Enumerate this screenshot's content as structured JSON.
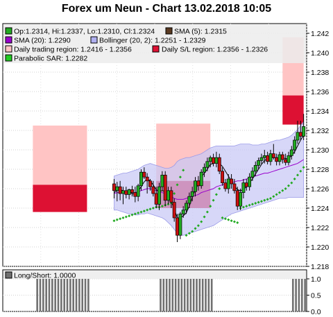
{
  "title": "Forex um Neun - Chart 13.02.2018 10:05",
  "colors": {
    "up": "#22aa22",
    "down": "#cc1111",
    "sma5": "#000000",
    "sma20": "#9900cc",
    "bollinger_fill": "#c8c8f5",
    "bollinger_line": "#9a9ae8",
    "trading_region": "#ffc4c4",
    "sl_region": "#dd1133",
    "sar": "#22aa22",
    "longshort": "#707070"
  },
  "legend": {
    "ohlc": "Op:1.2314, Hi:1.2337, Lo:1.2310, Cl:1.2324",
    "sma5": "SMA (5): 1.2315",
    "sma20": "SMA (20): 1.2290",
    "bollinger": "Bollinger (20, 2): 1.2251 - 1.2329",
    "trading_region": "Daily trading region: 1.2416 - 1.2356",
    "sl_region": "Daily S/L region: 1.2356 - 1.2326",
    "sar": "Parabolic SAR: 1.2282",
    "longshort": "Long/Short: 1.0000"
  },
  "chart_data": [
    {
      "type": "candlestick",
      "title": "Forex um Neun - Chart 13.02.2018 10:05",
      "ylim": [
        1.218,
        1.243
      ],
      "yticks": [
        "1.218",
        "1.220",
        "1.222",
        "1.224",
        "1.226",
        "1.228",
        "1.230",
        "1.232",
        "1.234",
        "1.236",
        "1.238",
        "1.240",
        "1.242"
      ],
      "grid": true,
      "legend_position": "top-left",
      "candles": [
        {
          "o": 1.2265,
          "h": 1.227,
          "l": 1.225,
          "c": 1.2258
        },
        {
          "o": 1.2258,
          "h": 1.2267,
          "l": 1.2247,
          "c": 1.2262
        },
        {
          "o": 1.2262,
          "h": 1.2268,
          "l": 1.2248,
          "c": 1.2255
        },
        {
          "o": 1.2255,
          "h": 1.2262,
          "l": 1.2244,
          "c": 1.2258
        },
        {
          "o": 1.2258,
          "h": 1.2262,
          "l": 1.225,
          "c": 1.2254
        },
        {
          "o": 1.2254,
          "h": 1.226,
          "l": 1.2249,
          "c": 1.2259
        },
        {
          "o": 1.2259,
          "h": 1.2263,
          "l": 1.2252,
          "c": 1.2256
        },
        {
          "o": 1.2256,
          "h": 1.2262,
          "l": 1.2246,
          "c": 1.2252
        },
        {
          "o": 1.2252,
          "h": 1.2265,
          "l": 1.2247,
          "c": 1.2263
        },
        {
          "o": 1.2263,
          "h": 1.228,
          "l": 1.2258,
          "c": 1.2277
        },
        {
          "o": 1.2277,
          "h": 1.2282,
          "l": 1.227,
          "c": 1.2272
        },
        {
          "o": 1.2272,
          "h": 1.2276,
          "l": 1.2255,
          "c": 1.2268
        },
        {
          "o": 1.2268,
          "h": 1.227,
          "l": 1.2258,
          "c": 1.2262
        },
        {
          "o": 1.2262,
          "h": 1.2268,
          "l": 1.2252,
          "c": 1.2255
        },
        {
          "o": 1.2255,
          "h": 1.2262,
          "l": 1.224,
          "c": 1.2244
        },
        {
          "o": 1.2244,
          "h": 1.2266,
          "l": 1.2238,
          "c": 1.2262
        },
        {
          "o": 1.2262,
          "h": 1.2278,
          "l": 1.2258,
          "c": 1.2274
        },
        {
          "o": 1.2274,
          "h": 1.2278,
          "l": 1.2242,
          "c": 1.2248
        },
        {
          "o": 1.2248,
          "h": 1.2262,
          "l": 1.2244,
          "c": 1.2258
        },
        {
          "o": 1.2258,
          "h": 1.2262,
          "l": 1.224,
          "c": 1.2246
        },
        {
          "o": 1.2246,
          "h": 1.225,
          "l": 1.2226,
          "c": 1.223
        },
        {
          "o": 1.223,
          "h": 1.2234,
          "l": 1.2205,
          "c": 1.2212
        },
        {
          "o": 1.2212,
          "h": 1.2236,
          "l": 1.2208,
          "c": 1.2234
        },
        {
          "o": 1.2234,
          "h": 1.2242,
          "l": 1.223,
          "c": 1.2238
        },
        {
          "o": 1.2238,
          "h": 1.2248,
          "l": 1.2234,
          "c": 1.2245
        },
        {
          "o": 1.2245,
          "h": 1.2256,
          "l": 1.224,
          "c": 1.2252
        },
        {
          "o": 1.2252,
          "h": 1.2262,
          "l": 1.2247,
          "c": 1.2257
        },
        {
          "o": 1.2257,
          "h": 1.2272,
          "l": 1.2252,
          "c": 1.2268
        },
        {
          "o": 1.2268,
          "h": 1.2273,
          "l": 1.2258,
          "c": 1.2263
        },
        {
          "o": 1.2263,
          "h": 1.228,
          "l": 1.226,
          "c": 1.2277
        },
        {
          "o": 1.2277,
          "h": 1.2286,
          "l": 1.2272,
          "c": 1.2282
        },
        {
          "o": 1.2282,
          "h": 1.2292,
          "l": 1.2278,
          "c": 1.2288
        },
        {
          "o": 1.2288,
          "h": 1.2294,
          "l": 1.2282,
          "c": 1.2292
        },
        {
          "o": 1.2292,
          "h": 1.2296,
          "l": 1.2283,
          "c": 1.2286
        },
        {
          "o": 1.2286,
          "h": 1.2298,
          "l": 1.2282,
          "c": 1.2292
        },
        {
          "o": 1.2292,
          "h": 1.2296,
          "l": 1.2275,
          "c": 1.2278
        },
        {
          "o": 1.2278,
          "h": 1.2282,
          "l": 1.2263,
          "c": 1.2266
        },
        {
          "o": 1.2266,
          "h": 1.227,
          "l": 1.2257,
          "c": 1.226
        },
        {
          "o": 1.226,
          "h": 1.2275,
          "l": 1.2255,
          "c": 1.227
        },
        {
          "o": 1.227,
          "h": 1.2275,
          "l": 1.226,
          "c": 1.2265
        },
        {
          "o": 1.2265,
          "h": 1.227,
          "l": 1.2255,
          "c": 1.2258
        },
        {
          "o": 1.2258,
          "h": 1.2262,
          "l": 1.2238,
          "c": 1.2242
        },
        {
          "o": 1.2242,
          "h": 1.226,
          "l": 1.2238,
          "c": 1.2256
        },
        {
          "o": 1.2256,
          "h": 1.227,
          "l": 1.225,
          "c": 1.2266
        },
        {
          "o": 1.2266,
          "h": 1.227,
          "l": 1.2258,
          "c": 1.2262
        },
        {
          "o": 1.2262,
          "h": 1.2276,
          "l": 1.2258,
          "c": 1.2272
        },
        {
          "o": 1.2272,
          "h": 1.2282,
          "l": 1.2268,
          "c": 1.2278
        },
        {
          "o": 1.2278,
          "h": 1.2288,
          "l": 1.2273,
          "c": 1.2284
        },
        {
          "o": 1.2284,
          "h": 1.2292,
          "l": 1.228,
          "c": 1.2289
        },
        {
          "o": 1.2289,
          "h": 1.2296,
          "l": 1.2285,
          "c": 1.2292
        },
        {
          "o": 1.2292,
          "h": 1.23,
          "l": 1.2286,
          "c": 1.2294
        },
        {
          "o": 1.2294,
          "h": 1.2298,
          "l": 1.2285,
          "c": 1.2288
        },
        {
          "o": 1.2288,
          "h": 1.23,
          "l": 1.2284,
          "c": 1.2296
        },
        {
          "o": 1.2296,
          "h": 1.2306,
          "l": 1.229,
          "c": 1.2292
        },
        {
          "o": 1.2292,
          "h": 1.2296,
          "l": 1.2284,
          "c": 1.2288
        },
        {
          "o": 1.2288,
          "h": 1.2298,
          "l": 1.2284,
          "c": 1.2295
        },
        {
          "o": 1.2295,
          "h": 1.2298,
          "l": 1.2286,
          "c": 1.229
        },
        {
          "o": 1.229,
          "h": 1.2296,
          "l": 1.2284,
          "c": 1.2287
        },
        {
          "o": 1.2287,
          "h": 1.2298,
          "l": 1.2284,
          "c": 1.2294
        },
        {
          "o": 1.2294,
          "h": 1.2304,
          "l": 1.229,
          "c": 1.23
        },
        {
          "o": 1.23,
          "h": 1.2314,
          "l": 1.2296,
          "c": 1.231
        },
        {
          "o": 1.231,
          "h": 1.233,
          "l": 1.2306,
          "c": 1.2318
        },
        {
          "o": 1.2318,
          "h": 1.233,
          "l": 1.231,
          "c": 1.2314
        },
        {
          "o": 1.2314,
          "h": 1.2337,
          "l": 1.231,
          "c": 1.2324
        }
      ],
      "sma5": [
        1.2256,
        1.2258,
        1.2259,
        1.2258,
        1.2256,
        1.2256,
        1.2255,
        1.2254,
        1.2257,
        1.2262,
        1.2267,
        1.227,
        1.2268,
        1.2264,
        1.2259,
        1.2257,
        1.2258,
        1.2257,
        1.2253,
        1.2247,
        1.2239,
        1.223,
        1.223,
        1.2232,
        1.2235,
        1.2242,
        1.2251,
        1.2259,
        1.2265,
        1.2272,
        1.2276,
        1.228,
        1.2285,
        1.2286,
        1.2287,
        1.2286,
        1.2283,
        1.2278,
        1.2273,
        1.2268,
        1.2263,
        1.2259,
        1.2258,
        1.2259,
        1.2262,
        1.2266,
        1.227,
        1.2275,
        1.228,
        1.2285,
        1.2289,
        1.2291,
        1.2292,
        1.2292,
        1.2292,
        1.2292,
        1.2292,
        1.2291,
        1.2291,
        1.2294,
        1.2298,
        1.2304,
        1.231,
        1.2315
      ],
      "sma20": [
        1.2255,
        1.2256,
        1.2256,
        1.2256,
        1.2256,
        1.2256,
        1.2256,
        1.2256,
        1.2257,
        1.2258,
        1.2259,
        1.226,
        1.226,
        1.2259,
        1.2258,
        1.2257,
        1.2256,
        1.2255,
        1.2254,
        1.2252,
        1.225,
        1.2249,
        1.2249,
        1.2249,
        1.225,
        1.2251,
        1.2252,
        1.2253,
        1.2254,
        1.2256,
        1.2257,
        1.2258,
        1.2259,
        1.226,
        1.2262,
        1.2263,
        1.2264,
        1.2265,
        1.2266,
        1.2266,
        1.2267,
        1.2268,
        1.2268,
        1.2269,
        1.227,
        1.2271,
        1.2272,
        1.2273,
        1.2274,
        1.2275,
        1.2276,
        1.2276,
        1.2277,
        1.2278,
        1.2279,
        1.228,
        1.2281,
        1.2282,
        1.2283,
        1.2284,
        1.2285,
        1.2286,
        1.2288,
        1.229
      ],
      "bollinger_upper": [
        1.2273,
        1.2274,
        1.2275,
        1.2276,
        1.2276,
        1.2277,
        1.2278,
        1.2279,
        1.228,
        1.2282,
        1.2284,
        1.2285,
        1.2286,
        1.2285,
        1.2284,
        1.2283,
        1.2282,
        1.2281,
        1.2281,
        1.2282,
        1.2284,
        1.2288,
        1.229,
        1.2291,
        1.2292,
        1.2292,
        1.2293,
        1.2294,
        1.2295,
        1.2296,
        1.2298,
        1.23,
        1.2302,
        1.2303,
        1.2304,
        1.2304,
        1.2304,
        1.2304,
        1.2304,
        1.2304,
        1.2304,
        1.2305,
        1.2306,
        1.2306,
        1.2306,
        1.2306,
        1.2305,
        1.2305,
        1.2305,
        1.2306,
        1.2306,
        1.2307,
        1.2308,
        1.2309,
        1.231,
        1.231,
        1.2311,
        1.2312,
        1.2313,
        1.2315,
        1.2318,
        1.2321,
        1.2325,
        1.2329
      ],
      "bollinger_lower": [
        1.2238,
        1.2238,
        1.2237,
        1.2236,
        1.2235,
        1.2234,
        1.2234,
        1.2233,
        1.2233,
        1.2234,
        1.2234,
        1.2235,
        1.2234,
        1.2233,
        1.2232,
        1.2231,
        1.223,
        1.2228,
        1.2225,
        1.2222,
        1.2218,
        1.2214,
        1.2212,
        1.2212,
        1.2213,
        1.2214,
        1.2215,
        1.2216,
        1.2217,
        1.2218,
        1.2219,
        1.222,
        1.2221,
        1.2222,
        1.2224,
        1.2226,
        1.2228,
        1.223,
        1.2232,
        1.2234,
        1.2235,
        1.2236,
        1.2237,
        1.2238,
        1.2239,
        1.224,
        1.2241,
        1.2242,
        1.2243,
        1.2244,
        1.2245,
        1.2246,
        1.2247,
        1.2248,
        1.2249,
        1.225,
        1.225,
        1.225,
        1.2251,
        1.2251,
        1.2251,
        1.2251,
        1.2251,
        1.2251
      ],
      "parabolic_sar": [
        1.2227,
        1.2228,
        1.2229,
        1.223,
        1.2231,
        1.2232,
        1.2233,
        1.2234,
        1.2235,
        1.2236,
        1.2237,
        1.2238,
        1.2239,
        1.224,
        1.2241,
        1.2241,
        1.2242,
        1.2243,
        1.2244,
        1.2245,
        1.2255,
        1.2264,
        1.2272,
        1.2279,
        1.2212,
        1.2214,
        1.2216,
        1.2219,
        1.2222,
        1.2226,
        1.2231,
        1.2236,
        1.2242,
        1.2248,
        1.2254,
        1.226,
        1.223,
        1.2229,
        1.2228,
        1.2227,
        1.2226,
        1.2225,
        1.224,
        1.2241,
        1.2242,
        1.2243,
        1.2244,
        1.2245,
        1.2246,
        1.2247,
        1.2248,
        1.2249,
        1.225,
        1.2252,
        1.2254,
        1.2256,
        1.2258,
        1.226,
        1.2263,
        1.2266,
        1.227,
        1.2274,
        1.2278,
        1.2282
      ],
      "daily_trading_region": [
        {
          "start": 10,
          "end": 28,
          "low": 1.2264,
          "high": 1.2325
        },
        {
          "start": 51,
          "end": 69,
          "low": 1.2268,
          "high": 1.2327
        },
        {
          "start": 93,
          "end": 100,
          "low": 1.2356,
          "high": 1.2416
        }
      ],
      "daily_sl_region": [
        {
          "start": 10,
          "end": 28,
          "low": 1.2236,
          "high": 1.2264
        },
        {
          "start": 51,
          "end": 69,
          "low": 1.224,
          "high": 1.2268
        },
        {
          "start": 93,
          "end": 100,
          "low": 1.2326,
          "high": 1.2356
        }
      ],
      "x_domain": [
        0,
        101
      ]
    },
    {
      "type": "bar",
      "title": "Long/Short",
      "ylim": [
        0,
        1
      ],
      "yticks": [
        "0.0",
        "0.5",
        "1.0"
      ],
      "values": [
        0,
        0,
        0,
        0,
        0,
        0,
        0,
        0,
        0,
        0,
        0,
        1,
        1,
        1,
        1,
        1,
        1,
        1,
        1,
        1,
        1,
        1,
        1,
        1,
        1,
        1,
        1,
        1,
        1,
        0,
        0,
        0,
        0,
        0,
        0,
        0,
        0,
        0,
        0,
        0,
        0,
        0,
        0,
        0,
        0,
        0,
        0,
        0,
        0,
        0,
        0,
        0,
        1,
        1,
        1,
        1,
        1,
        1,
        1,
        1,
        1,
        1,
        1,
        1,
        1,
        1,
        1,
        1,
        1,
        1,
        0,
        0,
        0,
        0,
        0,
        0,
        0,
        0,
        0,
        0,
        0,
        0,
        0,
        0,
        0,
        0,
        0,
        0,
        0,
        0,
        0,
        0,
        0,
        0,
        0,
        0,
        1,
        1,
        1,
        1,
        1
      ]
    }
  ]
}
